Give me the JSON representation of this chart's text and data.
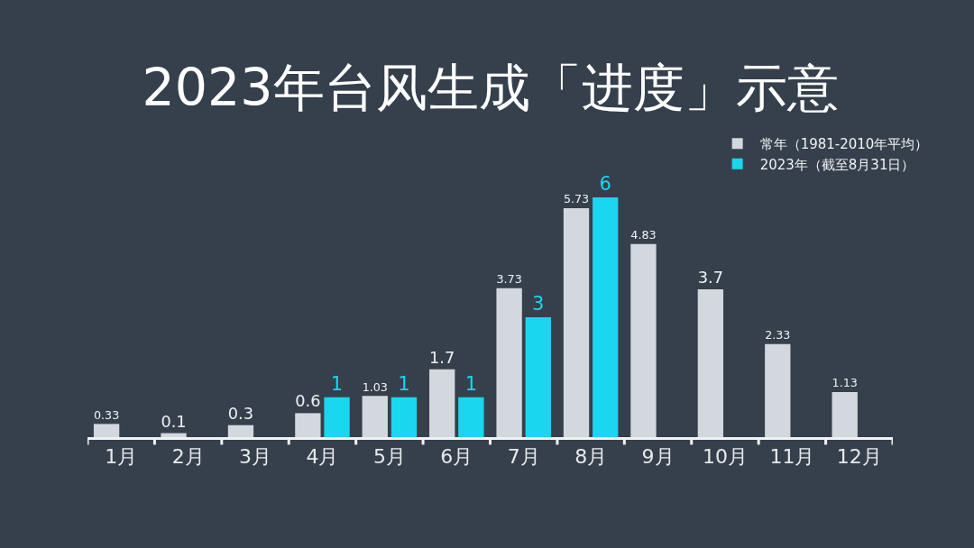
{
  "chart_data": {
    "type": "bar",
    "title": "2023年台风生成「进度」示意",
    "categories": [
      "1月",
      "2月",
      "3月",
      "4月",
      "5月",
      "6月",
      "7月",
      "8月",
      "9月",
      "10月",
      "11月",
      "12月"
    ],
    "series": [
      {
        "name": "常年（1981-2010年平均）",
        "color": "#d3d8df",
        "values": [
          0.33,
          0.1,
          0.3,
          0.6,
          1.03,
          1.7,
          3.73,
          5.73,
          4.83,
          3.7,
          2.33,
          1.13
        ]
      },
      {
        "name": "2023年（截至8月31日）",
        "color": "#1ad6ee",
        "values": [
          null,
          null,
          null,
          1,
          1,
          1,
          3,
          6,
          null,
          null,
          null,
          null
        ]
      }
    ],
    "data_labels": true,
    "legend": "top right",
    "grid": false
  }
}
